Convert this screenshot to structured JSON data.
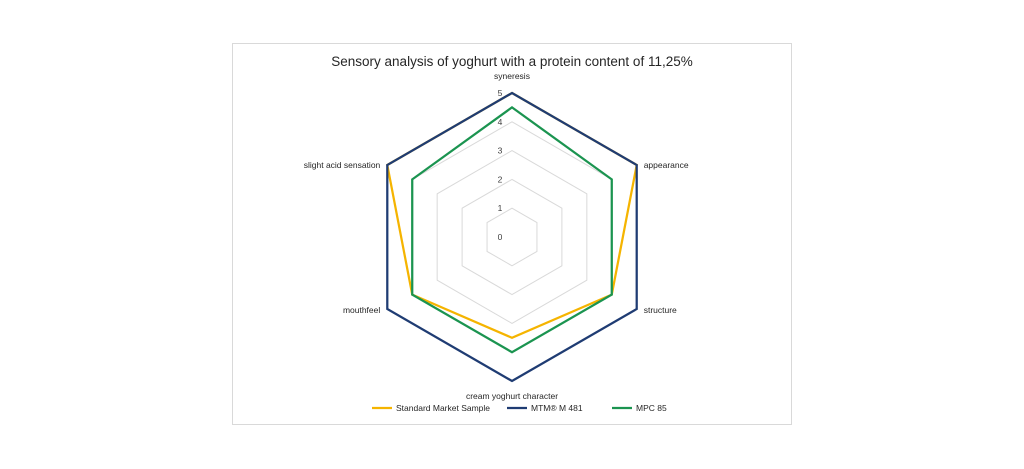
{
  "chart_data": {
    "type": "radar",
    "title": "Sensory analysis of yoghurt with a protein content of 11,25%",
    "axes": [
      "syneresis",
      "appearance",
      "structure",
      "cream yoghurt character",
      "mouthfeel",
      "slight acid sensation"
    ],
    "rlim": [
      0,
      5
    ],
    "ticks": [
      "0",
      "1",
      "2",
      "3",
      "4",
      "5"
    ],
    "grid": true,
    "legend_position": "bottom",
    "series": [
      {
        "name": "Standard Market Sample",
        "color": "#f5b400",
        "values": [
          5,
          5,
          4,
          3.5,
          4,
          5
        ]
      },
      {
        "name": "MTM® M 481",
        "color": "#1f3c73",
        "values": [
          5,
          5,
          5,
          5,
          5,
          5
        ]
      },
      {
        "name": "MPC 85",
        "color": "#1b9450",
        "values": [
          4.5,
          4,
          4,
          4,
          4,
          4
        ]
      }
    ]
  }
}
